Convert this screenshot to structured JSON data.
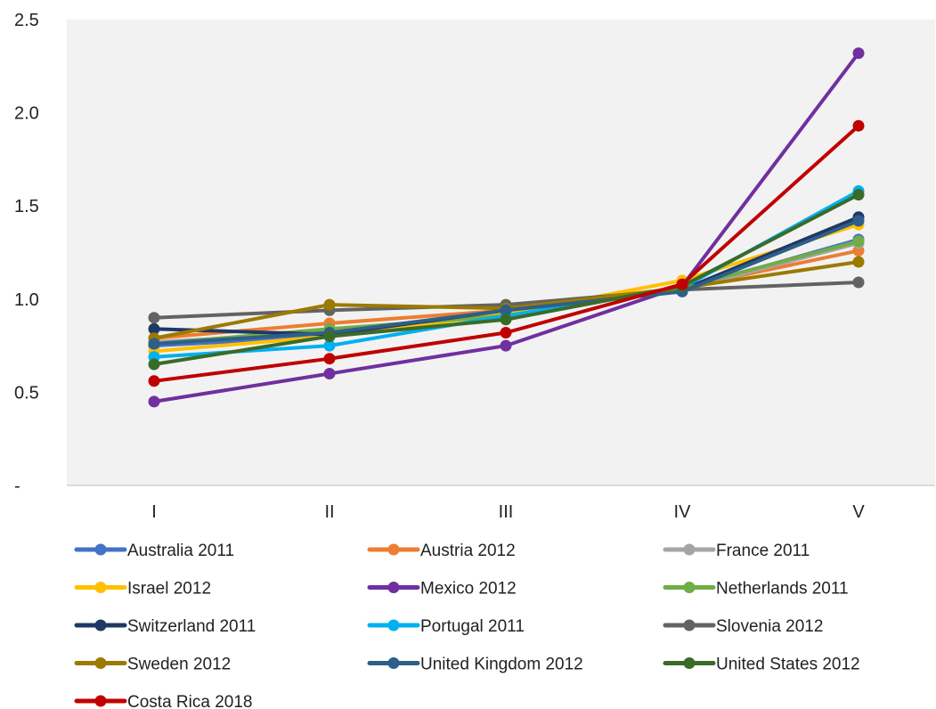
{
  "chart_data": {
    "type": "line",
    "title": "",
    "xlabel": "",
    "ylabel": "",
    "categories": [
      "I",
      "II",
      "III",
      "IV",
      "V"
    ],
    "ylim": [
      0,
      2.5
    ],
    "yticks": [
      {
        "value": 0,
        "label": "-"
      },
      {
        "value": 0.5,
        "label": "0.5"
      },
      {
        "value": 1.0,
        "label": "1.0"
      },
      {
        "value": 1.5,
        "label": "1.5"
      },
      {
        "value": 2.0,
        "label": "2.0"
      },
      {
        "value": 2.5,
        "label": "2.5"
      }
    ],
    "grid": false,
    "plot_background": "#f2f2f2",
    "legend_position": "bottom",
    "series": [
      {
        "name": "Australia 2011",
        "color": "#4472c4",
        "values": [
          0.75,
          0.8,
          0.93,
          1.05,
          1.32
        ]
      },
      {
        "name": "Austria 2012",
        "color": "#ed7d31",
        "values": [
          0.79,
          0.87,
          0.94,
          1.06,
          1.26
        ]
      },
      {
        "name": "France 2011",
        "color": "#a5a5a5",
        "values": [
          0.77,
          0.82,
          0.93,
          1.05,
          1.3
        ]
      },
      {
        "name": "Israel 2012",
        "color": "#ffc000",
        "values": [
          0.72,
          0.8,
          0.92,
          1.1,
          1.4
        ]
      },
      {
        "name": "Mexico 2012",
        "color": "#7030a0",
        "values": [
          0.45,
          0.6,
          0.75,
          1.07,
          2.32
        ]
      },
      {
        "name": "Netherlands 2011",
        "color": "#70ad47",
        "values": [
          0.76,
          0.84,
          0.91,
          1.06,
          1.31
        ]
      },
      {
        "name": "Switzerland 2011",
        "color": "#203864",
        "values": [
          0.84,
          0.81,
          0.94,
          1.05,
          1.44
        ]
      },
      {
        "name": "Portugal 2011",
        "color": "#00b0f0",
        "values": [
          0.69,
          0.75,
          0.91,
          1.06,
          1.58
        ]
      },
      {
        "name": "Slovenia 2012",
        "color": "#636363",
        "values": [
          0.9,
          0.94,
          0.97,
          1.05,
          1.09
        ]
      },
      {
        "name": "Sweden 2012",
        "color": "#9c7a00",
        "values": [
          0.79,
          0.97,
          0.95,
          1.06,
          1.2
        ]
      },
      {
        "name": "United Kingdom 2012",
        "color": "#2e5f8a",
        "values": [
          0.76,
          0.82,
          0.94,
          1.04,
          1.42
        ]
      },
      {
        "name": "United States 2012",
        "color": "#3a6b29",
        "values": [
          0.65,
          0.8,
          0.89,
          1.07,
          1.56
        ]
      },
      {
        "name": "Costa Rica 2018",
        "color": "#c00000",
        "values": [
          0.56,
          0.68,
          0.82,
          1.08,
          1.93
        ]
      }
    ]
  }
}
